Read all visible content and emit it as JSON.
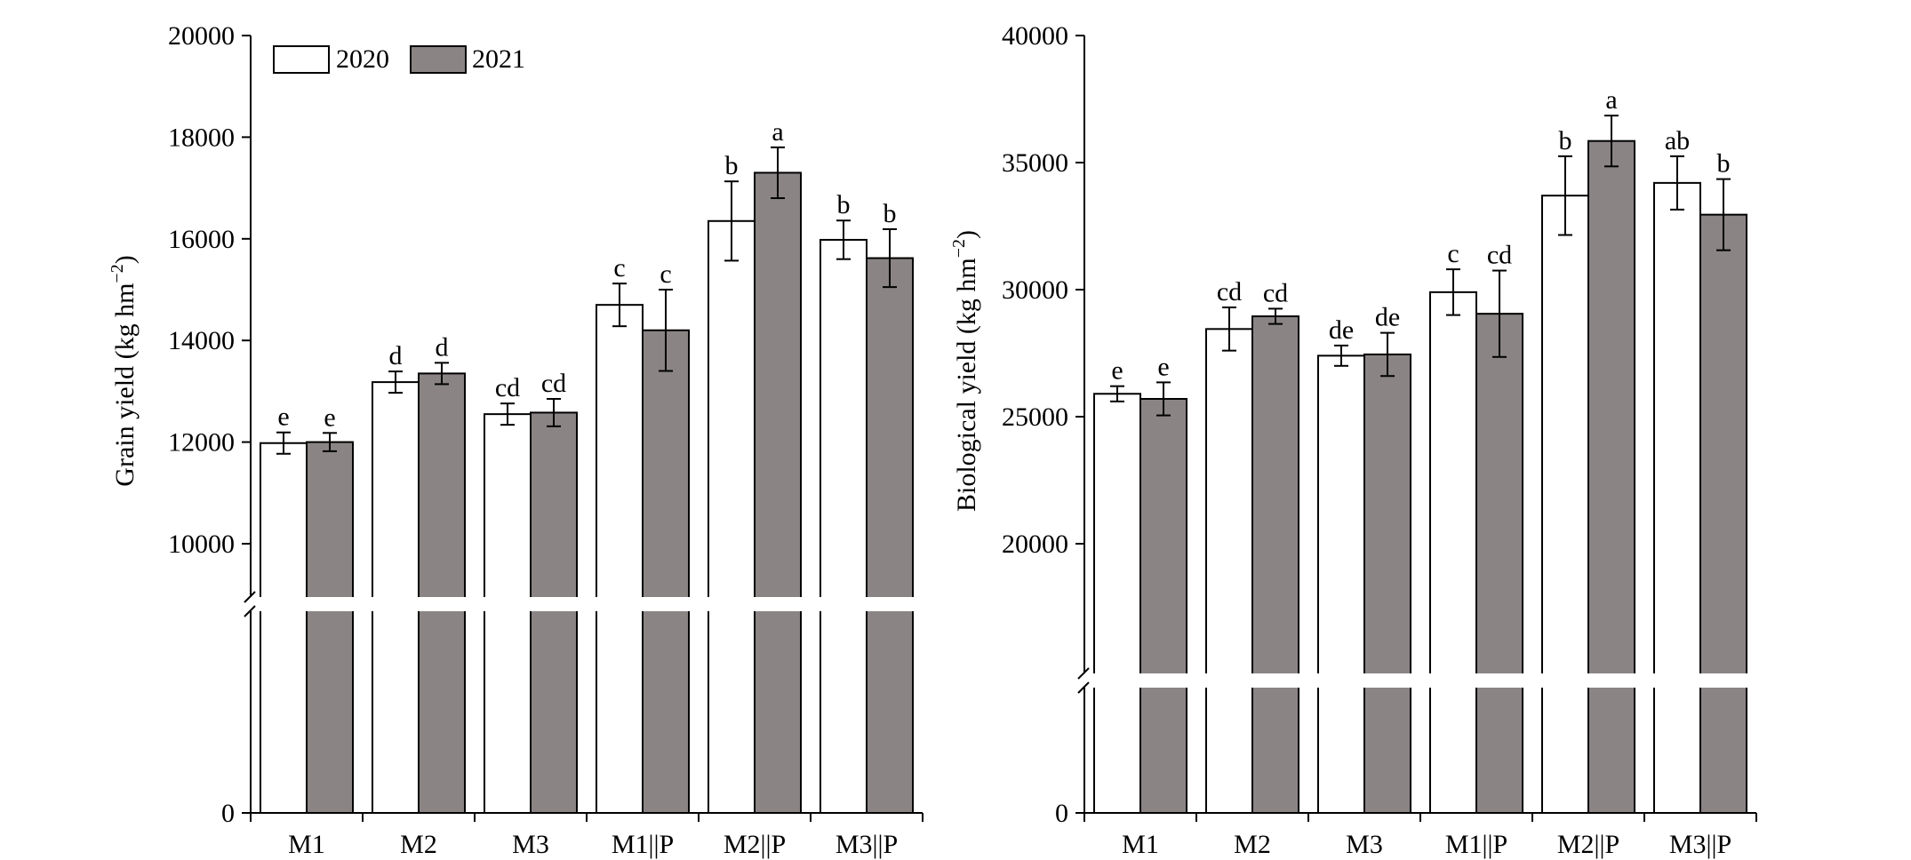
{
  "legend": [
    {
      "label": "2020",
      "color": "#ffffff"
    },
    {
      "label": "2021",
      "color": "#8a8584"
    }
  ],
  "chart_data": [
    {
      "type": "bar",
      "ylabel": "Grain yield (kg hm",
      "ylabel_sup": "−2",
      "ylabel_close": ")",
      "categories": [
        "M1",
        "M2",
        "M3",
        "M1||P",
        "M2||P",
        "M3||P"
      ],
      "y_ticks": [
        0,
        10000,
        12000,
        14000,
        16000,
        18000,
        20000
      ],
      "y_tick_labels": [
        "0",
        "10000",
        "12000",
        "14000",
        "16000",
        "18000",
        "20000"
      ],
      "axis_break": {
        "from": 0,
        "to": 9000
      },
      "ylim": [
        0,
        20000
      ],
      "legend_position": "top-left",
      "series": [
        {
          "name": "2020",
          "color": "#ffffff",
          "values": [
            11980,
            13180,
            12550,
            14700,
            16350,
            15980
          ],
          "errors": [
            210,
            210,
            210,
            420,
            780,
            380
          ],
          "letters": [
            "e",
            "d",
            "cd",
            "c",
            "b",
            "b"
          ]
        },
        {
          "name": "2021",
          "color": "#8a8584",
          "values": [
            12000,
            13350,
            12580,
            14200,
            17300,
            15620
          ],
          "errors": [
            180,
            210,
            270,
            800,
            500,
            570
          ],
          "letters": [
            "e",
            "d",
            "cd",
            "c",
            "a",
            "b"
          ]
        }
      ]
    },
    {
      "type": "bar",
      "ylabel": "Biological yield (kg hm",
      "ylabel_sup": "−2",
      "ylabel_close": ")",
      "categories": [
        "M1",
        "M2",
        "M3",
        "M1||P",
        "M2||P",
        "M3||P"
      ],
      "y_ticks": [
        0,
        20000,
        25000,
        30000,
        35000,
        40000
      ],
      "y_tick_labels": [
        "0",
        "20000",
        "25000",
        "30000",
        "35000",
        "40000"
      ],
      "axis_break": {
        "from": 0,
        "to": 15000
      },
      "ylim": [
        0,
        40000
      ],
      "series": [
        {
          "name": "2020",
          "color": "#ffffff",
          "values": [
            25900,
            28450,
            27400,
            29900,
            33700,
            34200
          ],
          "errors": [
            300,
            850,
            400,
            900,
            1550,
            1050
          ],
          "letters": [
            "e",
            "cd",
            "de",
            "c",
            "b",
            "ab"
          ]
        },
        {
          "name": "2021",
          "color": "#8a8584",
          "values": [
            25700,
            28950,
            27450,
            29050,
            35850,
            32950
          ],
          "errors": [
            650,
            300,
            850,
            1700,
            1000,
            1400
          ],
          "letters": [
            "e",
            "cd",
            "de",
            "cd",
            "a",
            "b"
          ]
        }
      ]
    }
  ]
}
